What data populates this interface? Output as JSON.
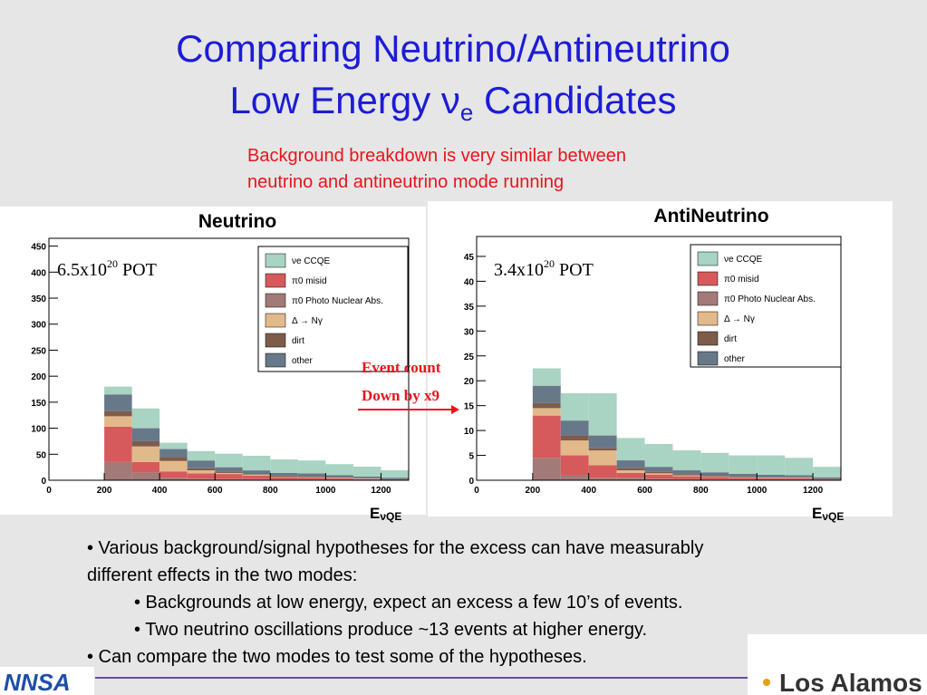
{
  "title": {
    "line1": "Comparing Neutrino/Antineutrino",
    "line2_before": "Low Energy ν",
    "line2_sub": "e",
    "line2_after": " Candidates"
  },
  "subtitle": [
    "Background breakdown is very similar between",
    "neutrino and antineutrino mode running"
  ],
  "annotation": [
    "Event count",
    "Down by x9"
  ],
  "bullets": [
    {
      "text": "• Various background/signal hypotheses for the excess can have measurably",
      "level": 1
    },
    {
      "text": "different effects in the two modes:",
      "level": 1
    },
    {
      "text": "•   Backgrounds at low energy, expect an excess a few 10’s of events.",
      "level": 2
    },
    {
      "text": "•   Two neutrino oscillations produce ~13 events at higher energy.",
      "level": 2
    },
    {
      "text": "• Can compare the two modes to test some of the hypotheses.",
      "level": 1
    }
  ],
  "logos": {
    "left": "NNSA",
    "right": "Los Alamos"
  },
  "chart_data": [
    {
      "type": "histogram",
      "title": "Neutrino",
      "pot": {
        "base": "6.5x10",
        "exp": "20",
        "unit": " POT"
      },
      "xlabel": {
        "base": "E",
        "sub": "νQE"
      },
      "bins": [
        200,
        300,
        400,
        500,
        600,
        700,
        800,
        900,
        1000,
        1100,
        1200,
        1300
      ],
      "xlim": [
        0,
        1300
      ],
      "xticks": [
        0,
        200,
        400,
        600,
        800,
        1000,
        1200
      ],
      "ylim": [
        0,
        465
      ],
      "yticks": [
        0,
        50,
        100,
        150,
        200,
        250,
        300,
        350,
        400,
        450
      ],
      "series": [
        {
          "name": "π0 Photo Nuclear Abs.",
          "color": "#a27a78",
          "values": [
            35,
            15,
            5,
            3,
            2,
            2,
            1,
            1,
            1,
            0,
            0
          ]
        },
        {
          "name": "π0 misid",
          "color": "#d65a5c",
          "values": [
            68,
            20,
            12,
            10,
            10,
            7,
            5,
            4,
            3,
            2,
            1
          ]
        },
        {
          "name": "Δ → Nγ",
          "color": "#e2b98a",
          "values": [
            20,
            30,
            20,
            6,
            2,
            2,
            1,
            1,
            1,
            1,
            0
          ]
        },
        {
          "name": "dirt",
          "color": "#7e5c4b",
          "values": [
            10,
            10,
            8,
            4,
            3,
            2,
            2,
            2,
            1,
            1,
            1
          ]
        },
        {
          "name": "other",
          "color": "#677889",
          "values": [
            32,
            25,
            15,
            15,
            8,
            6,
            5,
            5,
            4,
            3,
            3
          ]
        },
        {
          "name": "νe CCQE",
          "color": "#a9d3c3",
          "values": [
            15,
            38,
            12,
            18,
            26,
            28,
            26,
            25,
            21,
            19,
            14
          ]
        }
      ]
    },
    {
      "type": "histogram",
      "title": "AntiNeutrino",
      "pot": {
        "base": "3.4x10",
        "exp": "20",
        "unit": " POT"
      },
      "xlabel": {
        "base": "E",
        "sub": "νQE"
      },
      "bins": [
        200,
        300,
        400,
        500,
        600,
        700,
        800,
        900,
        1000,
        1100,
        1200,
        1300
      ],
      "xlim": [
        0,
        1300
      ],
      "xticks": [
        0,
        200,
        400,
        600,
        800,
        1000,
        1200
      ],
      "ylim": [
        0,
        49
      ],
      "yticks": [
        0,
        5,
        10,
        15,
        20,
        25,
        30,
        35,
        40,
        45
      ],
      "series": [
        {
          "name": "π0 Photo Nuclear Abs.",
          "color": "#a27a78",
          "values": [
            4.5,
            1,
            0.5,
            0.5,
            0.3,
            0.2,
            0.2,
            0.1,
            0.1,
            0.1,
            0
          ]
        },
        {
          "name": "π0 misid",
          "color": "#d65a5c",
          "values": [
            8.5,
            4,
            2.5,
            1,
            0.8,
            0.6,
            0.5,
            0.4,
            0.3,
            0.3,
            0.2
          ]
        },
        {
          "name": "Δ → Nγ",
          "color": "#e2b98a",
          "values": [
            1.5,
            3,
            3,
            0.5,
            0.3,
            0.2,
            0.1,
            0.1,
            0.1,
            0.1,
            0
          ]
        },
        {
          "name": "dirt",
          "color": "#7e5c4b",
          "values": [
            1,
            1,
            0.5,
            0.5,
            0.3,
            0.2,
            0.2,
            0.2,
            0.1,
            0.1,
            0.1
          ]
        },
        {
          "name": "other",
          "color": "#677889",
          "values": [
            3.5,
            3,
            2.5,
            1.5,
            1,
            0.8,
            0.6,
            0.5,
            0.5,
            0.4,
            0.3
          ]
        },
        {
          "name": "νe CCQE",
          "color": "#a9d3c3",
          "values": [
            3.5,
            5.5,
            8.5,
            4.5,
            4.6,
            4,
            3.9,
            3.7,
            3.9,
            3.5,
            2.1
          ]
        }
      ]
    }
  ]
}
